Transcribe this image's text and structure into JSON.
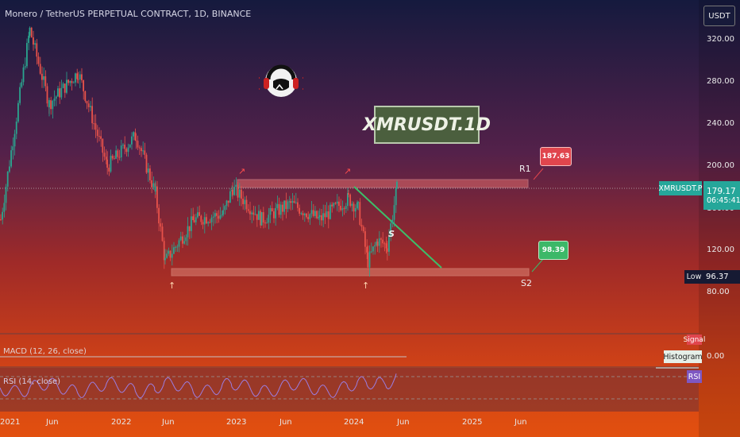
{
  "header": {
    "symbol_text": "Monero / TetherUS PERPETUAL CONTRACT, 1D, BINANCE"
  },
  "currency": "USDT",
  "title_box": "XMRUSDT.1D",
  "resistance": {
    "label": "R1",
    "value": "187.63",
    "color": "#e0454d"
  },
  "support": {
    "label": "S2",
    "value": "98.39",
    "color": "#3cb868"
  },
  "pattern_label": "S",
  "price_tag": {
    "symbol": "XMRUSDT.P",
    "price": "179.17",
    "countdown": "06:45:41",
    "color": "#25a79a"
  },
  "low_tag": {
    "label": "Low",
    "value": "96.37"
  },
  "indicators": {
    "macd_label": "MACD (12, 26, close)",
    "macd_value": "0.00",
    "signal_label": "Signal",
    "histogram_label": "Histogram",
    "rsi_label": "RSI (14, close)",
    "rsi_tag": "RSI"
  },
  "chart_data": {
    "type": "candlestick",
    "y_ticks": [
      "320.00",
      "280.00",
      "240.00",
      "200.00",
      "160.00",
      "120.00",
      "80.00"
    ],
    "ylim": [
      70,
      340
    ],
    "x_ticks": [
      "2021",
      "Jun",
      "2022",
      "Jun",
      "2023",
      "Jun",
      "2024",
      "Jun",
      "2025",
      "Jun"
    ],
    "series_close_approx": [
      {
        "x": "2021-01",
        "y": 150
      },
      {
        "x": "2021-04",
        "y": 330
      },
      {
        "x": "2021-06",
        "y": 260
      },
      {
        "x": "2021-09",
        "y": 290
      },
      {
        "x": "2021-12",
        "y": 200
      },
      {
        "x": "2022-03",
        "y": 230
      },
      {
        "x": "2022-05",
        "y": 175
      },
      {
        "x": "2022-06",
        "y": 110
      },
      {
        "x": "2022-09",
        "y": 150
      },
      {
        "x": "2022-12",
        "y": 155
      },
      {
        "x": "2023-01",
        "y": 180
      },
      {
        "x": "2023-04",
        "y": 150
      },
      {
        "x": "2023-07",
        "y": 165
      },
      {
        "x": "2023-10",
        "y": 150
      },
      {
        "x": "2024-01",
        "y": 170
      },
      {
        "x": "2024-02",
        "y": 160
      },
      {
        "x": "2024-03",
        "y": 110
      },
      {
        "x": "2024-04",
        "y": 130
      },
      {
        "x": "2024-05",
        "y": 125
      },
      {
        "x": "2024-06",
        "y": 179.17
      }
    ],
    "levels": {
      "R1": 187.63,
      "S2": 98.39,
      "last": 179.17,
      "low": 96.37
    }
  }
}
